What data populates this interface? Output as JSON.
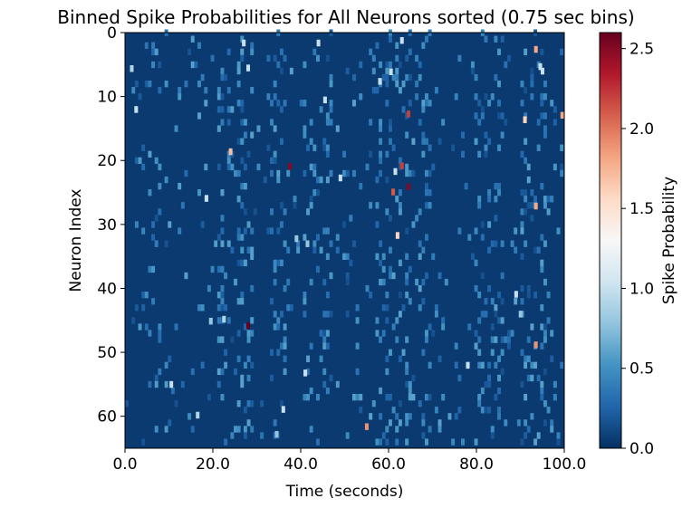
{
  "chart_data": {
    "type": "heatmap",
    "title": "Binned Spike Probabilities for All Neurons sorted (0.75 sec bins)",
    "xlabel": "Time (seconds)",
    "ylabel": "Neuron Index",
    "colorbar_label": "Spike Probability",
    "xlim": [
      0,
      100
    ],
    "ylim": [
      65,
      0
    ],
    "x_ticks": [
      0,
      20,
      40,
      60,
      80,
      100
    ],
    "x_tick_labels": [
      "0.0",
      "20.0",
      "40.0",
      "60.0",
      "80.0",
      "100.0"
    ],
    "y_ticks": [
      0,
      10,
      20,
      30,
      40,
      50,
      60
    ],
    "y_tick_labels": [
      "0",
      "10",
      "20",
      "30",
      "40",
      "50",
      "60"
    ],
    "colorbar_ticks": [
      0.0,
      0.5,
      1.0,
      1.5,
      2.0,
      2.5
    ],
    "colorbar_tick_labels": [
      "0.0",
      "0.5",
      "1.0",
      "1.5",
      "2.0",
      "2.5"
    ],
    "value_range": [
      0,
      2.6
    ],
    "colormap": "RdBu_r",
    "colormap_stops": [
      "#053061",
      "#2166ac",
      "#4393c3",
      "#92c5de",
      "#d1e5f0",
      "#f7f7f7",
      "#fddbc7",
      "#f4a582",
      "#d6604d",
      "#b2182b",
      "#67001f"
    ],
    "bin_width_seconds": 0.75,
    "neuron_count": 65,
    "background_value": 0.05,
    "grid": false,
    "notable_cells": [
      {
        "time": 28.0,
        "neuron": 45.8,
        "value": 2.6
      },
      {
        "time": 37.5,
        "neuron": 20.9,
        "value": 2.5
      },
      {
        "time": 64.5,
        "neuron": 24.1,
        "value": 2.5
      },
      {
        "time": 63.0,
        "neuron": 20.8,
        "value": 2.2
      },
      {
        "time": 61.0,
        "neuron": 24.9,
        "value": 2.1
      },
      {
        "time": 64.5,
        "neuron": 12.7,
        "value": 2.2
      },
      {
        "time": 93.5,
        "neuron": 48.8,
        "value": 1.9
      },
      {
        "time": 93.5,
        "neuron": 2.6,
        "value": 1.8
      },
      {
        "time": 91.0,
        "neuron": 13.6,
        "value": 1.6
      },
      {
        "time": 99.5,
        "neuron": 12.9,
        "value": 1.8
      },
      {
        "time": 93.5,
        "neuron": 27.1,
        "value": 1.8
      },
      {
        "time": 55.0,
        "neuron": 61.6,
        "value": 1.9
      },
      {
        "time": 24.0,
        "neuron": 18.6,
        "value": 1.7
      },
      {
        "time": 62.0,
        "neuron": 31.7,
        "value": 1.6
      },
      {
        "time": 94.5,
        "neuron": 5.3,
        "value": 1.0
      },
      {
        "time": 78.0,
        "neuron": 52.0,
        "value": 1.0
      },
      {
        "time": 89.0,
        "neuron": 40.9,
        "value": 1.0
      },
      {
        "time": 95.0,
        "neuron": 6.0,
        "value": 1.0
      },
      {
        "time": 61.5,
        "neuron": 21.7,
        "value": 1.0
      },
      {
        "time": 27.0,
        "neuron": 1.6,
        "value": 1.0
      },
      {
        "time": 44.0,
        "neuron": 1.6,
        "value": 1.0
      },
      {
        "time": 63.0,
        "neuron": 1.2,
        "value": 1.0
      },
      {
        "time": 60.5,
        "neuron": 6.1,
        "value": 1.0
      },
      {
        "time": 49.0,
        "neuron": 22.7,
        "value": 1.0
      },
      {
        "time": 45.5,
        "neuron": 10.5,
        "value": 1.0
      },
      {
        "time": 18.5,
        "neuron": 25.9,
        "value": 1.0
      },
      {
        "time": 36.0,
        "neuron": 58.9,
        "value": 1.0
      },
      {
        "time": 10.5,
        "neuron": 55.0,
        "value": 1.0
      },
      {
        "time": 41.0,
        "neuron": 53.2,
        "value": 1.0
      },
      {
        "time": 58.0,
        "neuron": 7.6,
        "value": 1.0
      },
      {
        "time": 28.0,
        "neuron": 5.5,
        "value": 1.0
      },
      {
        "time": 2.5,
        "neuron": 12.0,
        "value": 1.0
      },
      {
        "time": 1.5,
        "neuron": 5.6,
        "value": 0.9
      },
      {
        "time": 16.5,
        "neuron": 59.8,
        "value": 0.9
      },
      {
        "time": 22.5,
        "neuron": 44.8,
        "value": 0.9
      },
      {
        "time": 19.5,
        "neuron": 45.1,
        "value": 0.8
      },
      {
        "time": 39.0,
        "neuron": 32.2,
        "value": 0.8
      },
      {
        "time": 41.5,
        "neuron": 33.0,
        "value": 0.8
      },
      {
        "time": 34.5,
        "neuron": 62.8,
        "value": 0.8
      },
      {
        "time": 90.0,
        "neuron": 44.0,
        "value": 0.8
      }
    ]
  }
}
